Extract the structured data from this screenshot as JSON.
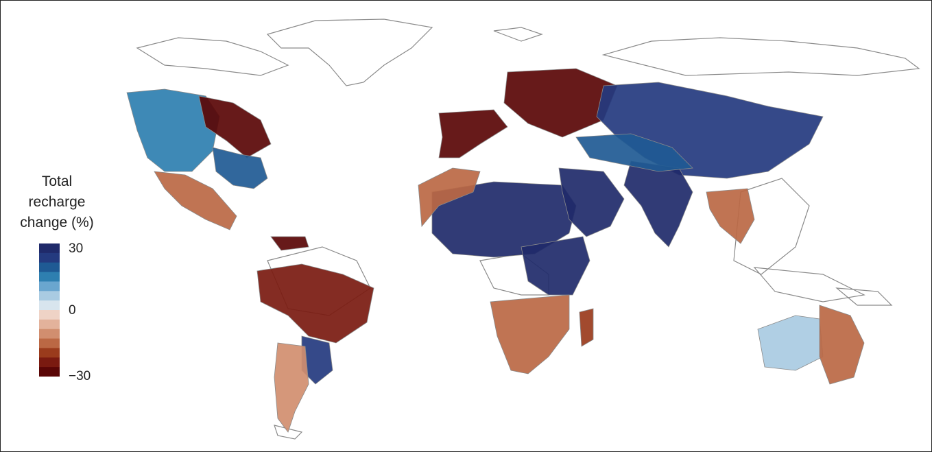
{
  "legend": {
    "title_lines": [
      "Total",
      "recharge",
      "change (%)"
    ],
    "tick_labels": [
      {
        "value": 30,
        "text": "30"
      },
      {
        "value": 0,
        "text": "0"
      },
      {
        "value": -30,
        "text": "−30"
      }
    ],
    "range": [
      -30,
      30
    ],
    "color_steps": [
      "#1f2a6a",
      "#243a7f",
      "#1f5a94",
      "#2e7fb0",
      "#6aa6cf",
      "#a9cbe2",
      "#d8e5ee",
      "#efd3c6",
      "#e3b29b",
      "#d18e6f",
      "#bb6844",
      "#9a3b1c",
      "#7a1a10",
      "#5a0606"
    ]
  },
  "map": {
    "coastline_color": "#8a8a8a",
    "land_color": "#ffffff",
    "regions": [
      {
        "name": "western-north-america",
        "change": 15
      },
      {
        "name": "central-canada",
        "change": -30
      },
      {
        "name": "eastern-united-states",
        "change": 20
      },
      {
        "name": "mexico",
        "change": -15
      },
      {
        "name": "venezuela",
        "change": -30
      },
      {
        "name": "central-south-america",
        "change": -25
      },
      {
        "name": "southern-brazil",
        "change": 25
      },
      {
        "name": "patagonia",
        "change": -10
      },
      {
        "name": "western-europe",
        "change": -30
      },
      {
        "name": "russia-west",
        "change": -30
      },
      {
        "name": "siberia",
        "change": 25
      },
      {
        "name": "sahara",
        "change": 30
      },
      {
        "name": "arabia",
        "change": 30
      },
      {
        "name": "india",
        "change": 30
      },
      {
        "name": "east-africa",
        "change": 30
      },
      {
        "name": "northwest-africa",
        "change": -15
      },
      {
        "name": "southern-africa",
        "change": -15
      },
      {
        "name": "southeast-asia",
        "change": -15
      },
      {
        "name": "central-asia",
        "change": 20
      },
      {
        "name": "australia-west",
        "change": 5
      },
      {
        "name": "australia-east",
        "change": -15
      },
      {
        "name": "madagascar",
        "change": -20
      }
    ]
  }
}
